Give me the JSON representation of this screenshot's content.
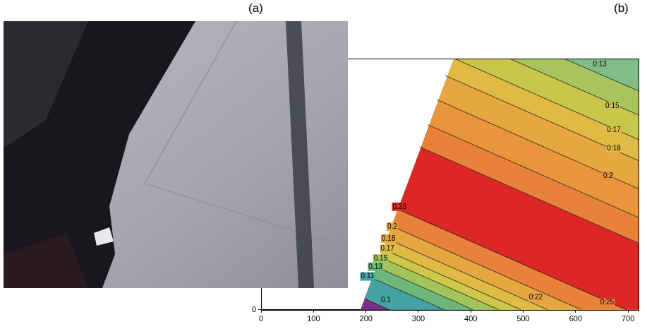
{
  "panel_labels": [
    "(a)",
    "(b)"
  ],
  "chart_data": {
    "type": "contour",
    "xlim": [
      0,
      720
    ],
    "xticks": [
      0,
      100,
      200,
      300,
      400,
      500,
      600,
      700
    ],
    "ylim": [
      0,
      490
    ],
    "yticks": [
      0
    ],
    "grid": false,
    "domain": [
      [
        190,
        0
      ],
      [
        720,
        0
      ],
      [
        720,
        490
      ],
      [
        369,
        490
      ]
    ],
    "contours": [
      {
        "points": [
          [
            197,
            22
          ],
          [
            245,
            0
          ]
        ]
      },
      {
        "points": [
          [
            211,
            62
          ],
          [
            350,
            0
          ]
        ]
      },
      {
        "points": [
          [
            219,
            84
          ],
          [
            405,
            0
          ]
        ]
      },
      {
        "points": [
          [
            226,
            103
          ],
          [
            454,
            0
          ]
        ]
      },
      {
        "points": [
          [
            231,
            119
          ],
          [
            496,
            0
          ]
        ]
      },
      {
        "points": [
          [
            239,
            139
          ],
          [
            547,
            0
          ]
        ]
      },
      {
        "points": [
          [
            247,
            164
          ],
          [
            611,
            0
          ]
        ]
      },
      {
        "points": [
          [
            259,
            197
          ],
          [
            697,
            0
          ]
        ]
      },
      {
        "points": [
          [
            302,
            318
          ],
          [
            720,
            130
          ]
        ]
      },
      {
        "points": [
          [
            318,
            361
          ],
          [
            720,
            180
          ]
        ]
      },
      {
        "points": [
          [
            335,
            410
          ],
          [
            720,
            236
          ]
        ]
      },
      {
        "points": [
          [
            351,
            457
          ],
          [
            720,
            291
          ]
        ]
      },
      {
        "points": [
          [
            369,
            490
          ],
          [
            720,
            332
          ]
        ]
      },
      {
        "points": [
          [
            474,
            490
          ],
          [
            720,
            380
          ]
        ]
      },
      {
        "points": [
          [
            578,
            490
          ],
          [
            720,
            427
          ]
        ]
      }
    ],
    "colors": [
      "#7b2d8e",
      "#46a3a3",
      "#6db77b",
      "#a3c35b",
      "#cfc74a",
      "#dfbb45",
      "#e6a640",
      "#e8823a",
      "#dd2626",
      "#e8823a",
      "#e8953c",
      "#e6a640",
      "#dfbb45",
      "#c9c64c",
      "#a8c45c",
      "#7fbe88"
    ],
    "contour_labels": [
      {
        "label": "0:13",
        "x": 646,
        "y": 478
      },
      {
        "label": "0:15",
        "x": 670,
        "y": 397
      },
      {
        "label": "0:17",
        "x": 673,
        "y": 350
      },
      {
        "label": "0:18",
        "x": 673,
        "y": 315
      },
      {
        "label": "0:2",
        "x": 662,
        "y": 261
      },
      {
        "label": "0.23",
        "x": 264,
        "y": 201
      },
      {
        "label": "0.2",
        "x": 250,
        "y": 162
      },
      {
        "label": "0.18",
        "x": 243,
        "y": 139
      },
      {
        "label": "0.17",
        "x": 241,
        "y": 119
      },
      {
        "label": "0.15",
        "x": 228,
        "y": 100
      },
      {
        "label": "0.13",
        "x": 218,
        "y": 84
      },
      {
        "label": "0.11",
        "x": 203,
        "y": 65
      },
      {
        "label": "0.1",
        "x": 238,
        "y": 19
      },
      {
        "label": "0:22",
        "x": 524,
        "y": 24
      },
      {
        "label": "0:25",
        "x": 660,
        "y": 14
      }
    ]
  }
}
